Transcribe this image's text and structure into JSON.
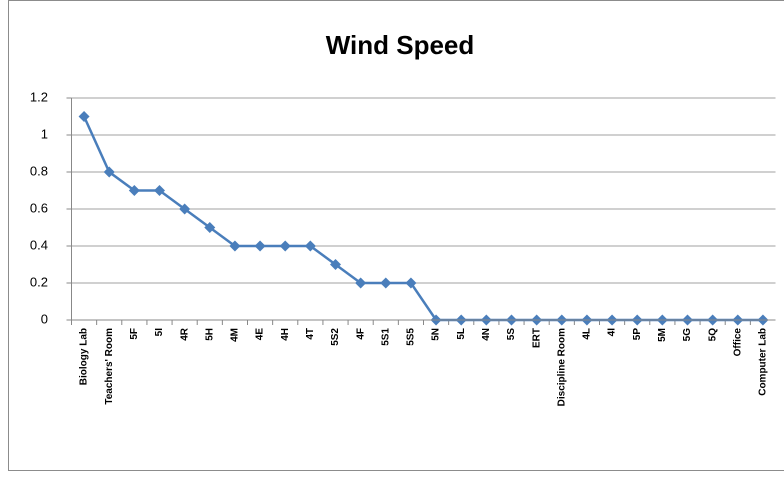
{
  "chart_data": {
    "type": "line",
    "title": "Wind Speed",
    "categories": [
      "Biology Lab",
      "Teachers' Room",
      "5F",
      "5I",
      "4R",
      "5H",
      "4M",
      "4E",
      "4H",
      "4T",
      "5S2",
      "4F",
      "5S1",
      "5S5",
      "5N",
      "5L",
      "4N",
      "5S",
      "ERT",
      "Discipline Room",
      "4L",
      "4I",
      "5P",
      "5M",
      "5G",
      "5Q",
      "Office",
      "Computer Lab"
    ],
    "series": [
      {
        "name": "Wind Speed",
        "color": "#4a7ebb",
        "values": [
          1.1,
          0.8,
          0.7,
          0.7,
          0.6,
          0.5,
          0.4,
          0.4,
          0.4,
          0.4,
          0.3,
          0.2,
          0.2,
          0.2,
          0,
          0,
          0,
          0,
          0,
          0,
          0,
          0,
          0,
          0,
          0,
          0,
          0,
          0
        ]
      }
    ],
    "ylim": [
      0,
      1.2
    ],
    "yticks": [
      0,
      0.2,
      0.4,
      0.6,
      0.8,
      1,
      1.2
    ],
    "grid": true
  }
}
